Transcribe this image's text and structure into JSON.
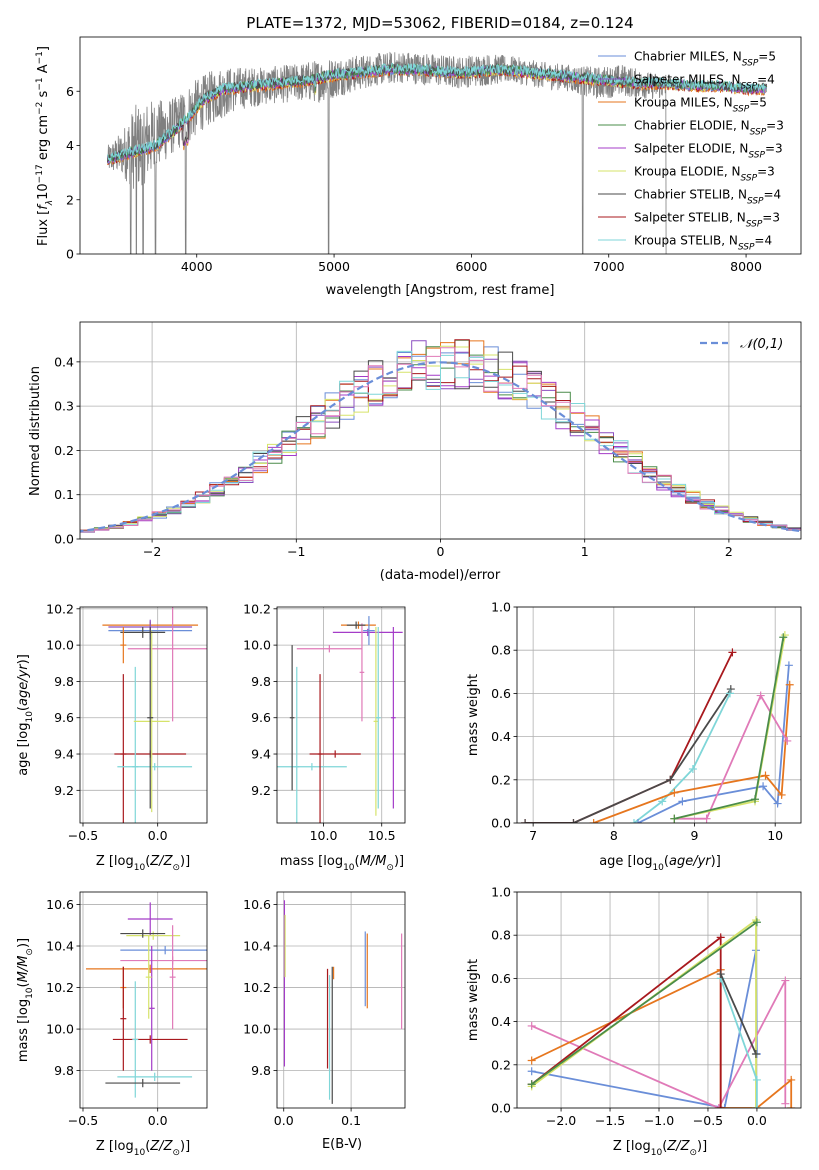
{
  "figure": {
    "title": "PLATE=1372, MJD=53062, FIBERID=0184, z=0.124"
  },
  "colors": {
    "chabrier_miles": "#6a8ed8",
    "salpeter_miles": "#8c4fc1",
    "kroupa_miles": "#e6761e",
    "chabrier_elodie": "#4a8c4a",
    "salpeter_elodie": "#a43cc8",
    "kroupa_elodie": "#d6e36a",
    "chabrier_stelib": "#4a4a4a",
    "salpeter_stelib": "#a8191e",
    "kroupa_stelib": "#7fd6d8",
    "pink": "#e07ab8",
    "data_gray": "#808080",
    "normal_curve": "#6a8ed8"
  },
  "chart_data": [
    {
      "id": "spectrum",
      "type": "line",
      "title": "PLATE=1372, MJD=53062, FIBERID=0184, z=0.124",
      "xlabel": "wavelength [Angstrom, rest frame]",
      "ylabel": "Flux [f_λ 10^-17 erg cm^-2 s^-1 A^-1]",
      "xlim": [
        3150,
        8400
      ],
      "ylim": [
        0,
        8
      ],
      "xticks": [
        4000,
        5000,
        6000,
        7000,
        8000
      ],
      "yticks": [
        0,
        2,
        4,
        6
      ],
      "legend": "top-right",
      "legend_entries": [
        {
          "label": "Chabrier MILES, N",
          "sub": "SSP",
          "suffix": "=5",
          "color_key": "chabrier_miles"
        },
        {
          "label": "Salpeter MILES, N",
          "sub": "SSP",
          "suffix": "=4",
          "color_key": "salpeter_miles"
        },
        {
          "label": "Kroupa MILES, N",
          "sub": "SSP",
          "suffix": "=5",
          "color_key": "kroupa_miles"
        },
        {
          "label": "Chabrier ELODIE, N",
          "sub": "SSP",
          "suffix": "=3",
          "color_key": "chabrier_elodie"
        },
        {
          "label": "Salpeter ELODIE, N",
          "sub": "SSP",
          "suffix": "=3",
          "color_key": "salpeter_elodie"
        },
        {
          "label": "Kroupa ELODIE, N",
          "sub": "SSP",
          "suffix": "=3",
          "color_key": "kroupa_elodie"
        },
        {
          "label": "Chabrier STELIB, N",
          "sub": "SSP",
          "suffix": "=4",
          "color_key": "chabrier_stelib"
        },
        {
          "label": "Salpeter STELIB, N",
          "sub": "SSP",
          "suffix": "=3",
          "color_key": "salpeter_stelib"
        },
        {
          "label": "Kroupa STELIB, N",
          "sub": "SSP",
          "suffix": "=4",
          "color_key": "kroupa_stelib"
        }
      ],
      "data_envelope": {
        "x": [
          3350,
          3450,
          3550,
          3650,
          3750,
          3850,
          3950,
          4050,
          4150,
          4300,
          4500,
          4700,
          4900,
          5100,
          5300,
          5500,
          5700,
          5900,
          6100,
          6300,
          6500,
          6700,
          6900,
          7100,
          7300,
          7420
        ],
        "y": [
          3.5,
          3.7,
          3.9,
          4.2,
          4.5,
          4.8,
          5.2,
          5.6,
          5.9,
          6.1,
          6.2,
          6.3,
          6.4,
          6.6,
          6.8,
          6.9,
          6.8,
          6.7,
          6.8,
          6.8,
          6.6,
          6.5,
          6.3,
          6.4,
          6.2,
          6.2
        ],
        "noise": [
          0.5,
          0.8,
          1.6,
          1.5,
          1.2,
          1.0,
          1.1,
          1.0,
          1.0,
          0.8,
          0.7,
          0.7,
          0.8,
          0.7,
          0.6,
          0.6,
          0.6,
          0.6,
          0.6,
          0.5,
          0.5,
          0.5,
          0.6,
          0.6,
          0.5,
          0.5
        ],
        "dropouts": [
          3520,
          3560,
          3610,
          3700,
          3920,
          4960,
          6810,
          7420
        ]
      },
      "model_envelope": {
        "x": [
          3350,
          3500,
          3700,
          3850,
          3950,
          4050,
          4200,
          4400,
          4600,
          4800,
          5000,
          5200,
          5400,
          5600,
          5800,
          6000,
          6200,
          6400,
          6600,
          6800,
          7000,
          7200,
          7400,
          7600,
          7800,
          8000,
          8150
        ],
        "y": [
          3.5,
          3.7,
          4.0,
          4.6,
          5.1,
          5.7,
          6.1,
          6.2,
          6.3,
          6.4,
          6.6,
          6.7,
          6.8,
          6.8,
          6.7,
          6.7,
          6.8,
          6.7,
          6.6,
          6.5,
          6.4,
          6.3,
          6.3,
          6.2,
          6.2,
          6.1,
          6.1
        ]
      }
    },
    {
      "id": "residuals",
      "type": "histogram",
      "xlabel": "(data-model)/error",
      "ylabel": "Normed distribution",
      "xlim": [
        -2.5,
        2.5
      ],
      "ylim": [
        0,
        0.49
      ],
      "xticks": [
        -2,
        -1,
        0,
        1,
        2
      ],
      "yticks": [
        0.0,
        0.1,
        0.2,
        0.3,
        0.4
      ],
      "legend": "top-right",
      "legend_entry": "𝒩(0,1)",
      "bin_edges_step": 0.1,
      "bin_edges_start": -2.5
    },
    {
      "id": "age_vs_Z",
      "type": "errorbar",
      "xlabel": "Z [log10(Z/Z⊙)]",
      "ylabel": "age [log10(age/yr)]",
      "xlim": [
        -0.52,
        0.33
      ],
      "ylim": [
        9.02,
        10.21
      ],
      "xticks": [
        -0.5,
        0.0
      ],
      "yticks": [
        9.2,
        9.4,
        9.6,
        9.8,
        10.0,
        10.2
      ],
      "points": [
        {
          "c": "chabrier_miles",
          "x": -0.05,
          "xerr": 0.28,
          "y": 10.08,
          "yerr": 0.05
        },
        {
          "c": "kroupa_miles",
          "x": -0.05,
          "xerr": 0.32,
          "y": 10.11,
          "yerr": 0.02
        },
        {
          "c": "salpeter_miles",
          "x": -0.05,
          "xerr": 0.28,
          "y": 10.1,
          "yerr": 0.04
        },
        {
          "c": "pink",
          "x": 0.1,
          "xerr": 0.3,
          "y": 9.98,
          "yerr": 0.4
        },
        {
          "c": "salpeter_stelib",
          "x": -0.23,
          "xerr": 0.02,
          "y": 9.4,
          "yerr": 0.44
        },
        {
          "c": "salpeter_stelib",
          "x": -0.05,
          "xerr": 0.24,
          "y": 9.4,
          "yerr": 0.02
        },
        {
          "c": "kroupa_stelib",
          "x": -0.02,
          "xerr": 0.25,
          "y": 9.33,
          "yerr": 0.02
        },
        {
          "c": "kroupa_stelib",
          "x": -0.15,
          "xerr": 0.02,
          "y": 9.33,
          "yerr": 0.55
        },
        {
          "c": "kroupa_elodie",
          "x": -0.04,
          "xerr": 0.12,
          "y": 9.58,
          "yerr": 0.5
        },
        {
          "c": "chabrier_stelib",
          "x": -0.1,
          "xerr": 0.15,
          "y": 10.07,
          "yerr": 0.03
        },
        {
          "c": "chabrier_stelib",
          "x": -0.05,
          "xerr": 0.02,
          "y": 9.6,
          "yerr": 0.5
        },
        {
          "c": "kroupa_miles",
          "x": -0.23,
          "xerr": 0.02,
          "y": 10.0,
          "yerr": 0.1
        }
      ]
    },
    {
      "id": "age_vs_mass",
      "type": "errorbar",
      "xlabel": "mass [log10(M/M⊙)]",
      "ylabel": "",
      "xlim": [
        9.6,
        10.7
      ],
      "ylim": [
        9.02,
        10.21
      ],
      "xticks": [
        10.0,
        10.5
      ],
      "yticks": [
        9.2,
        9.4,
        9.6,
        9.8,
        10.0,
        10.2
      ],
      "points": [
        {
          "c": "kroupa_miles",
          "x": 10.3,
          "xerr": 0.15,
          "y": 10.11,
          "yerr": 0.02
        },
        {
          "c": "salpeter_elodie",
          "x": 10.38,
          "xerr": 0.3,
          "y": 10.07,
          "yerr": 0.02
        },
        {
          "c": "salpeter_elodie",
          "x": 10.6,
          "xerr": 0.02,
          "y": 9.6,
          "yerr": 0.5
        },
        {
          "c": "chabrier_miles",
          "x": 10.39,
          "xerr": 0.05,
          "y": 10.08,
          "yerr": 0.08
        },
        {
          "c": "pink",
          "x": 10.05,
          "xerr": 0.28,
          "y": 9.98,
          "yerr": 0.02
        },
        {
          "c": "pink",
          "x": 10.33,
          "xerr": 0.02,
          "y": 9.85,
          "yerr": 0.27
        },
        {
          "c": "kroupa_elodie",
          "x": 10.45,
          "xerr": 0.02,
          "y": 9.58,
          "yerr": 0.52
        },
        {
          "c": "kroupa_stelib",
          "x": 10.47,
          "xerr": 0.02,
          "y": 9.6,
          "yerr": 0.5
        },
        {
          "c": "kroupa_stelib",
          "x": 9.9,
          "xerr": 0.3,
          "y": 9.33,
          "yerr": 0.02
        },
        {
          "c": "kroupa_stelib",
          "x": 9.77,
          "xerr": 0.02,
          "y": 9.33,
          "yerr": 0.55
        },
        {
          "c": "chabrier_stelib",
          "x": 9.73,
          "xerr": 0.02,
          "y": 9.6,
          "yerr": 0.4
        },
        {
          "c": "salpeter_stelib",
          "x": 9.97,
          "xerr": 0.02,
          "y": 9.4,
          "yerr": 0.44
        },
        {
          "c": "salpeter_stelib",
          "x": 10.1,
          "xerr": 0.22,
          "y": 9.4,
          "yerr": 0.02
        },
        {
          "c": "chabrier_stelib",
          "x": 10.28,
          "xerr": 0.08,
          "y": 10.11,
          "yerr": 0.02
        }
      ]
    },
    {
      "id": "mw_vs_age",
      "type": "line",
      "xlabel": "age [log10(age/yr)]",
      "ylabel": "mass weight",
      "xlim": [
        6.8,
        10.32
      ],
      "ylim": [
        0,
        1.0
      ],
      "xticks": [
        7,
        8,
        9,
        10
      ],
      "yticks": [
        0.0,
        0.2,
        0.4,
        0.6,
        0.8,
        1.0
      ],
      "series": [
        {
          "c": "salpeter_stelib",
          "x": [
            6.9,
            7.5,
            8.7,
            9.47
          ],
          "y": [
            0.0,
            0.0,
            0.2,
            0.79
          ]
        },
        {
          "c": "chabrier_stelib",
          "x": [
            6.9,
            7.5,
            8.7,
            9.45
          ],
          "y": [
            0.0,
            0.0,
            0.2,
            0.62
          ]
        },
        {
          "c": "kroupa_stelib",
          "x": [
            8.25,
            8.6,
            8.98,
            9.44
          ],
          "y": [
            0.0,
            0.1,
            0.25,
            0.6
          ]
        },
        {
          "c": "chabrier_miles",
          "x": [
            8.3,
            8.85,
            9.85,
            10.03,
            10.17
          ],
          "y": [
            0.0,
            0.1,
            0.17,
            0.09,
            0.73
          ]
        },
        {
          "c": "kroupa_miles",
          "x": [
            7.75,
            8.75,
            9.88,
            10.08,
            10.18
          ],
          "y": [
            0.0,
            0.14,
            0.22,
            0.13,
            0.64
          ]
        },
        {
          "c": "pink",
          "x": [
            8.75,
            9.15,
            9.82,
            10.15
          ],
          "y": [
            0.02,
            0.02,
            0.59,
            0.38
          ]
        },
        {
          "c": "kroupa_elodie",
          "x": [
            8.75,
            9.75,
            10.12
          ],
          "y": [
            0.02,
            0.1,
            0.87
          ]
        },
        {
          "c": "chabrier_elodie",
          "x": [
            8.75,
            9.75,
            10.1
          ],
          "y": [
            0.02,
            0.11,
            0.86
          ]
        }
      ]
    },
    {
      "id": "mass_vs_Z",
      "type": "errorbar",
      "xlabel": "Z [log10(Z/Z⊙)]",
      "ylabel": "mass [log10(M/M⊙)]",
      "xlim": [
        -0.52,
        0.33
      ],
      "ylim": [
        9.62,
        10.66
      ],
      "xticks": [
        -0.5,
        0.0
      ],
      "yticks": [
        9.8,
        10.0,
        10.2,
        10.4,
        10.6
      ],
      "points": [
        {
          "c": "salpeter_elodie",
          "x": -0.05,
          "xerr": 0.15,
          "y": 10.53,
          "yerr": 0.08
        },
        {
          "c": "kroupa_elodie",
          "x": -0.03,
          "xerr": 0.18,
          "y": 10.45,
          "yerr": 0.02
        },
        {
          "c": "chabrier_stelib",
          "x": -0.1,
          "xerr": 0.15,
          "y": 10.46,
          "yerr": 0.02
        },
        {
          "c": "chabrier_miles",
          "x": 0.05,
          "xerr": 0.3,
          "y": 10.38,
          "yerr": 0.02
        },
        {
          "c": "pink",
          "x": 0.1,
          "xerr": 0.35,
          "y": 10.33,
          "yerr": 0.02
        },
        {
          "c": "kroupa_miles",
          "x": -0.05,
          "xerr": 0.43,
          "y": 10.29,
          "yerr": 0.02
        },
        {
          "c": "kroupa_miles",
          "x": -0.23,
          "xerr": 0.02,
          "y": 10.2,
          "yerr": 0.1
        },
        {
          "c": "salpeter_stelib",
          "x": -0.05,
          "xerr": 0.25,
          "y": 9.95,
          "yerr": 0.02
        },
        {
          "c": "salpeter_stelib",
          "x": -0.23,
          "xerr": 0.02,
          "y": 10.05,
          "yerr": 0.25
        },
        {
          "c": "kroupa_stelib",
          "x": -0.02,
          "xerr": 0.25,
          "y": 9.77,
          "yerr": 0.02
        },
        {
          "c": "kroupa_stelib",
          "x": -0.15,
          "xerr": 0.02,
          "y": 9.95,
          "yerr": 0.28
        },
        {
          "c": "chabrier_stelib",
          "x": -0.1,
          "xerr": 0.25,
          "y": 9.74,
          "yerr": 0.02
        },
        {
          "c": "salpeter_elodie",
          "x": -0.04,
          "xerr": 0.02,
          "y": 10.1,
          "yerr": 0.3
        },
        {
          "c": "pink",
          "x": 0.1,
          "xerr": 0.02,
          "y": 10.25,
          "yerr": 0.25
        },
        {
          "c": "kroupa_elodie",
          "x": -0.06,
          "xerr": 0.02,
          "y": 10.25,
          "yerr": 0.2
        }
      ]
    },
    {
      "id": "mass_vs_ebv",
      "type": "errorbar",
      "xlabel": "E(B-V)",
      "ylabel": "",
      "xlim": [
        -0.01,
        0.18
      ],
      "ylim": [
        9.62,
        10.66
      ],
      "xticks": [
        0.0,
        0.1
      ],
      "yticks": [
        9.8,
        10.0,
        10.2,
        10.4,
        10.6
      ],
      "points": [
        {
          "c": "salpeter_elodie",
          "x": 0.001,
          "y": 10.22,
          "yerr": 0.4
        },
        {
          "c": "kroupa_elodie",
          "x": 0.002,
          "y": 10.4,
          "yerr": 0.15
        },
        {
          "c": "salpeter_stelib",
          "x": 0.065,
          "y": 10.05,
          "yerr": 0.24
        },
        {
          "c": "kroupa_stelib",
          "x": 0.068,
          "y": 9.96,
          "yerr": 0.3
        },
        {
          "c": "chabrier_stelib",
          "x": 0.072,
          "y": 9.97,
          "yerr": 0.33
        },
        {
          "c": "kroupa_miles",
          "x": 0.074,
          "y": 10.27,
          "yerr": 0.03
        },
        {
          "c": "chabrier_miles",
          "x": 0.121,
          "y": 10.29,
          "yerr": 0.18
        },
        {
          "c": "kroupa_miles",
          "x": 0.124,
          "y": 10.28,
          "yerr": 0.18
        },
        {
          "c": "pink",
          "x": 0.175,
          "y": 10.23,
          "yerr": 0.23
        }
      ]
    },
    {
      "id": "mw_vs_Z",
      "type": "line",
      "xlabel": "Z [log10(Z/Z⊙)]",
      "ylabel": "mass weight",
      "xlim": [
        -2.45,
        0.45
      ],
      "ylim": [
        0,
        1.0
      ],
      "xticks": [
        -2.0,
        -1.5,
        -1.0,
        -0.5,
        0.0
      ],
      "yticks": [
        0.0,
        0.2,
        0.4,
        0.6,
        0.8,
        1.0
      ],
      "series": [
        {
          "c": "chabrier_miles",
          "x": [
            -2.3,
            -0.33,
            -0.01,
            0.0
          ],
          "y": [
            0.17,
            0.0,
            0.73,
            0.25
          ]
        },
        {
          "c": "pink",
          "x": [
            -2.3,
            -0.39,
            0.29,
            0.29
          ],
          "y": [
            0.38,
            0.0,
            0.59,
            0.02
          ]
        },
        {
          "c": "kroupa_miles",
          "x": [
            -2.3,
            -0.37,
            -0.37,
            0.0,
            0.35,
            0.35
          ],
          "y": [
            0.22,
            0.64,
            0.0,
            0.0,
            0.13,
            0.0
          ]
        },
        {
          "c": "salpeter_stelib",
          "x": [
            -2.3,
            -0.37,
            -0.37
          ],
          "y": [
            0.11,
            0.79,
            0.0
          ]
        },
        {
          "c": "kroupa_elodie",
          "x": [
            -2.3,
            -0.01,
            -0.01
          ],
          "y": [
            0.1,
            0.87,
            0.0
          ]
        },
        {
          "c": "chabrier_elodie",
          "x": [
            -2.3,
            0.0
          ],
          "y": [
            0.11,
            0.86
          ]
        },
        {
          "c": "kroupa_stelib",
          "x": [
            -0.37,
            0.0,
            0.0
          ],
          "y": [
            0.6,
            0.13,
            0.0
          ]
        },
        {
          "c": "chabrier_stelib",
          "x": [
            -0.37,
            -0.01
          ],
          "y": [
            0.62,
            0.25
          ]
        }
      ]
    }
  ]
}
